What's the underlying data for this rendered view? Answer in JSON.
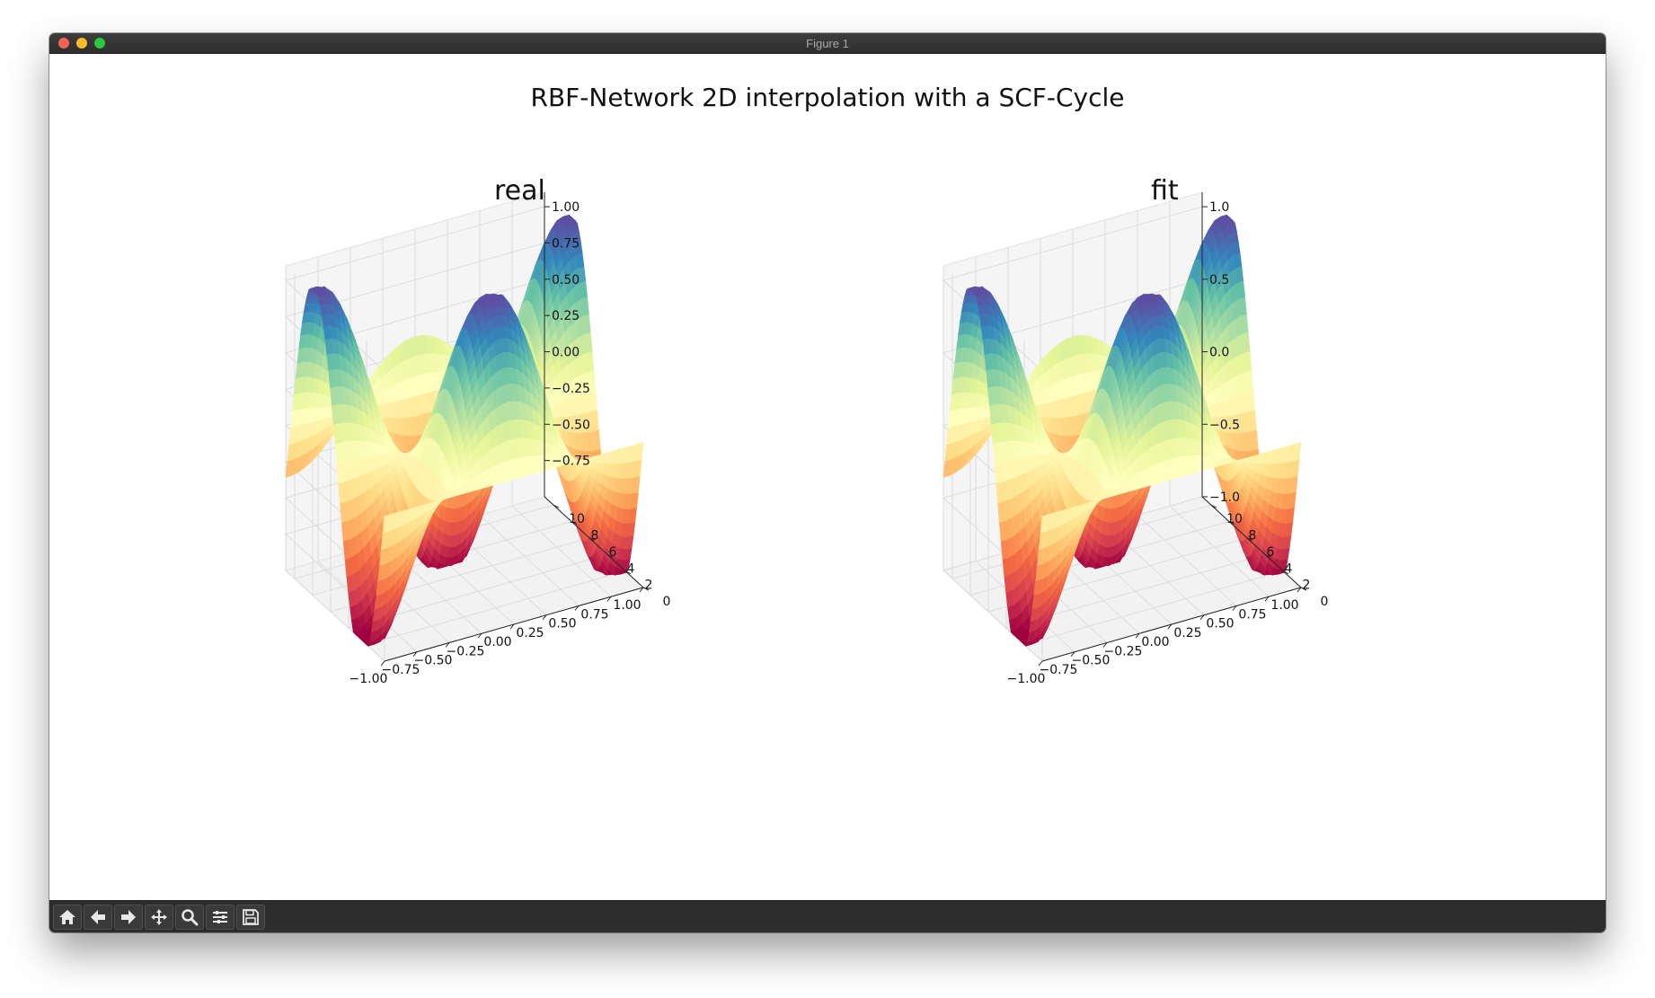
{
  "window": {
    "title": "Figure 1"
  },
  "figure": {
    "suptitle": "RBF-Network 2D interpolation with a SCF-Cycle"
  },
  "toolbar": {
    "buttons": [
      {
        "name": "home-icon"
      },
      {
        "name": "back-icon"
      },
      {
        "name": "forward-icon"
      },
      {
        "name": "pan-icon"
      },
      {
        "name": "zoom-icon"
      },
      {
        "name": "configure-subplots-icon"
      },
      {
        "name": "save-icon"
      }
    ]
  },
  "chart_data": [
    {
      "type": "surface",
      "title": "real",
      "x_ticks": [
        "−1.00",
        "−0.75",
        "−0.50",
        "−0.25",
        "0.00",
        "0.25",
        "0.50",
        "0.75",
        "1.00"
      ],
      "y_ticks": [
        "0",
        "2",
        "4",
        "6",
        "8",
        "10"
      ],
      "z_ticks": [
        "−0.75",
        "−0.50",
        "−0.25",
        "0.00",
        "0.25",
        "0.50",
        "0.75",
        "1.00"
      ],
      "xlim": [
        -1,
        1
      ],
      "ylim": [
        0,
        11
      ],
      "zlim": [
        -1,
        1.1
      ],
      "colormap": "Spectral",
      "colors": [
        "#9e0142",
        "#d53e4f",
        "#f46d43",
        "#fdae61",
        "#fee08b",
        "#ffffbf",
        "#e6f598",
        "#abdda4",
        "#66c2a5",
        "#3288bd",
        "#5e4fa2"
      ],
      "grid": true
    },
    {
      "type": "surface",
      "title": "fit",
      "x_ticks": [
        "−1.00",
        "−0.75",
        "−0.50",
        "−0.25",
        "0.00",
        "0.25",
        "0.50",
        "0.75",
        "1.00"
      ],
      "y_ticks": [
        "0",
        "2",
        "4",
        "6",
        "8",
        "10"
      ],
      "z_ticks": [
        "−1.0",
        "−0.5",
        "0.0",
        "0.5",
        "1.0"
      ],
      "xlim": [
        -1,
        1
      ],
      "ylim": [
        0,
        11
      ],
      "zlim": [
        -1,
        1.1
      ],
      "colormap": "Spectral",
      "colors": [
        "#9e0142",
        "#d53e4f",
        "#f46d43",
        "#fdae61",
        "#fee08b",
        "#ffffbf",
        "#e6f598",
        "#abdda4",
        "#66c2a5",
        "#3288bd",
        "#5e4fa2"
      ],
      "grid": true
    }
  ]
}
